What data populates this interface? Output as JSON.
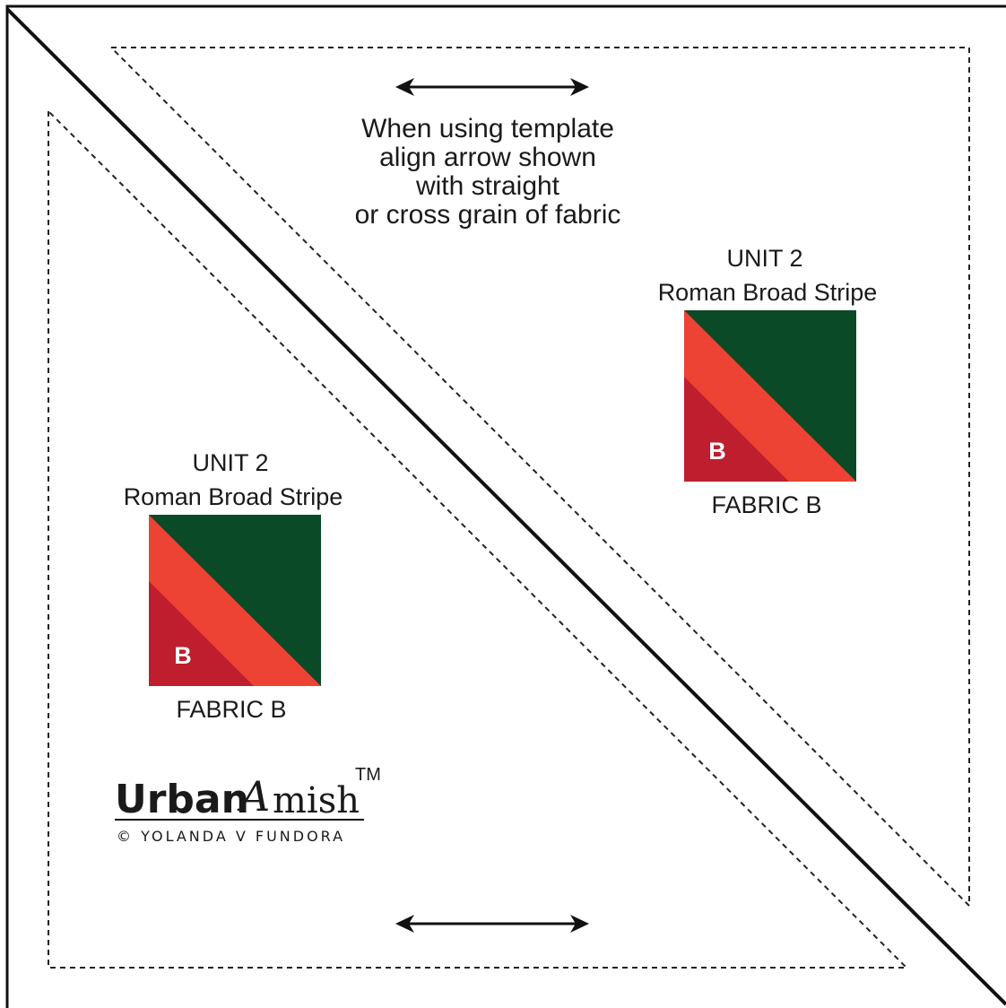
{
  "instruction_lines": [
    "When using template",
    "align arrow shown",
    "with straight",
    "or cross grain of fabric"
  ],
  "units": [
    {
      "title": "UNIT 2",
      "subtitle": "Roman Broad Stripe",
      "swatch_letter": "B",
      "fabric_label": "FABRIC B"
    },
    {
      "title": "UNIT 2",
      "subtitle": "Roman Broad Stripe",
      "swatch_letter": "B",
      "fabric_label": "FABRIC B"
    }
  ],
  "logo": {
    "word1": "Urban",
    "script_letter": "A",
    "word2": "mish",
    "trademark": "TM",
    "copyright": "© YOLANDA V FUNDORA"
  },
  "colors": {
    "dark_green": "#0b4a26",
    "orange_red": "#ec4334",
    "crimson": "#be1e2d",
    "line": "#111111"
  },
  "icons": [
    "double-headed-arrow-icon",
    "double-headed-arrow-icon"
  ]
}
